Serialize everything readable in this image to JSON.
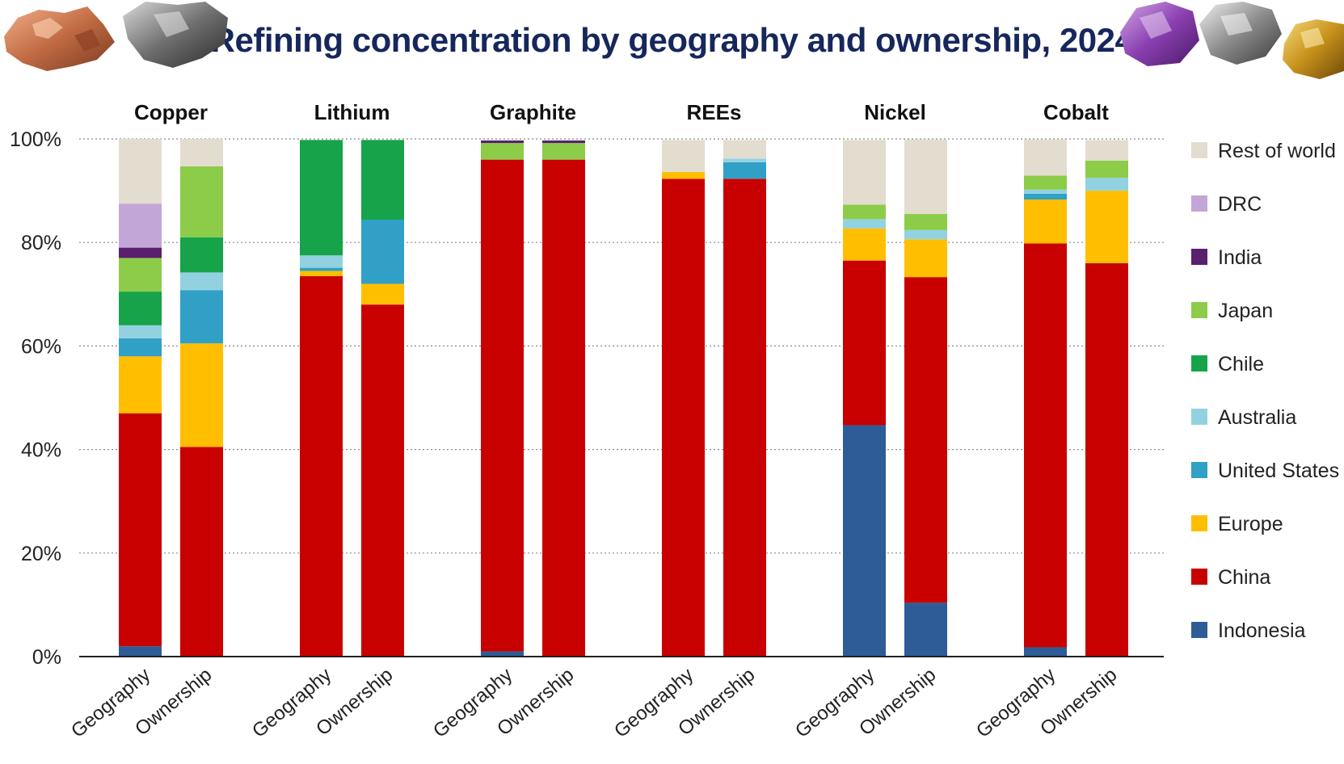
{
  "title": "Refining concentration by geography and ownership, 2024",
  "colors": {
    "Rest of world": "#e3ddd0",
    "DRC": "#c3a6d8",
    "India": "#5a1f6e",
    "Japan": "#8ccc48",
    "Chile": "#16a34a",
    "Australia": "#92d2e0",
    "United States": "#30a0c6",
    "Europe": "#ffbf00",
    "China": "#c80000",
    "Indonesia": "#2e5c97"
  },
  "chart_data": {
    "type": "bar",
    "stacked": true,
    "title": "Refining concentration by geography and ownership, 2024",
    "y_axis": {
      "ylim": [
        0,
        100
      ],
      "ticks": [
        "0%",
        "20%",
        "40%",
        "60%",
        "80%",
        "100%"
      ],
      "grid": "dotted"
    },
    "legend_position": "right",
    "legend": [
      "Rest of world",
      "DRC",
      "India",
      "Japan",
      "Chile",
      "Australia",
      "United States",
      "Europe",
      "China",
      "Indonesia"
    ],
    "stack_order": [
      "Indonesia",
      "China",
      "Europe",
      "United States",
      "Australia",
      "Chile",
      "Japan",
      "India",
      "DRC",
      "Rest of world"
    ],
    "groups": [
      {
        "name": "Copper",
        "bars": [
          {
            "label": "Geography",
            "values": {
              "Indonesia": 2,
              "China": 45,
              "Europe": 11,
              "United States": 3.5,
              "Australia": 2.5,
              "Chile": 6.5,
              "Japan": 6.5,
              "India": 2,
              "DRC": 8.5,
              "Rest of world": 12.5
            }
          },
          {
            "label": "Ownership",
            "values": {
              "China": 40.5,
              "Europe": 20,
              "United States": 10.3,
              "Australia": 3.4,
              "Chile": 6.8,
              "Japan": 13.7,
              "Rest of world": 5.3
            }
          }
        ]
      },
      {
        "name": "Lithium",
        "bars": [
          {
            "label": "Geography",
            "values": {
              "China": 73.5,
              "Europe": 1,
              "United States": 0.6,
              "Australia": 2.4,
              "Chile": 22.3
            }
          },
          {
            "label": "Ownership",
            "values": {
              "China": 68,
              "Europe": 4,
              "United States": 12.4,
              "Chile": 15.4
            }
          }
        ]
      },
      {
        "name": "Graphite",
        "bars": [
          {
            "label": "Geography",
            "values": {
              "Indonesia": 1,
              "China": 95,
              "Japan": 3.2,
              "India": 0.5
            }
          },
          {
            "label": "Ownership",
            "values": {
              "China": 96,
              "Japan": 3.2,
              "India": 0.5
            }
          }
        ]
      },
      {
        "name": "REEs",
        "bars": [
          {
            "label": "Geography",
            "values": {
              "China": 92.3,
              "Europe": 1.3,
              "Rest of world": 6.2
            }
          },
          {
            "label": "Ownership",
            "values": {
              "China": 92.3,
              "United States": 3.2,
              "Australia": 0.7,
              "Rest of world": 3.6
            }
          }
        ]
      },
      {
        "name": "Nickel",
        "bars": [
          {
            "label": "Geography",
            "values": {
              "Indonesia": 44.7,
              "China": 31.8,
              "Europe": 6.2,
              "Australia": 1.8,
              "Japan": 2.8,
              "Rest of world": 12.5
            }
          },
          {
            "label": "Ownership",
            "values": {
              "Indonesia": 10.4,
              "China": 62.9,
              "Europe": 7.3,
              "Australia": 1.8,
              "Japan": 3.1,
              "Rest of world": 14.4
            }
          }
        ]
      },
      {
        "name": "Cobalt",
        "bars": [
          {
            "label": "Geography",
            "values": {
              "Indonesia": 1.8,
              "China": 78,
              "Europe": 8.5,
              "United States": 1.1,
              "Australia": 0.8,
              "Japan": 2.7,
              "Rest of world": 7
            }
          },
          {
            "label": "Ownership",
            "values": {
              "China": 76,
              "Europe": 14,
              "Australia": 2.5,
              "Japan": 3.3,
              "Rest of world": 4
            }
          }
        ]
      }
    ]
  }
}
